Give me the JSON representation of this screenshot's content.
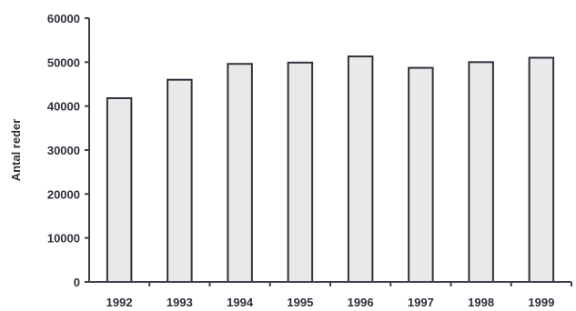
{
  "chart_data": {
    "type": "bar",
    "title": "",
    "xlabel": "",
    "ylabel": "Antal reder",
    "categories": [
      "1992",
      "1993",
      "1994",
      "1995",
      "1996",
      "1997",
      "1998",
      "1999"
    ],
    "values": [
      41800,
      46000,
      49600,
      49900,
      51300,
      48700,
      50000,
      51000
    ],
    "ylim": [
      0,
      60000
    ],
    "yticks": [
      0,
      10000,
      20000,
      30000,
      40000,
      50000,
      60000
    ],
    "ytick_labels": [
      "0",
      "10000",
      "20000",
      "30000",
      "40000",
      "50000",
      "60000"
    ],
    "grid": false,
    "legend": "none",
    "bar_fill": "#e9e9ea",
    "bar_stroke": "#2e323c"
  }
}
